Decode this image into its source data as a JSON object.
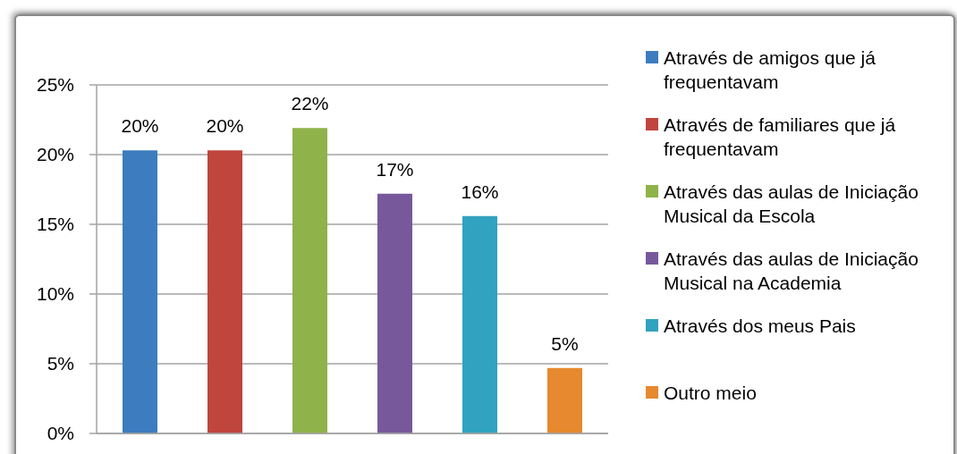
{
  "chart_data": {
    "type": "bar",
    "categories": [
      null
    ],
    "series": [
      {
        "name": "Através de amigos que já frequentavam",
        "color": "#3d7cbf",
        "values": [
          20.3
        ],
        "value_labels": [
          "20%"
        ]
      },
      {
        "name": "Através de familiares que já frequentavam",
        "color": "#bf453d",
        "values": [
          20.3
        ],
        "value_labels": [
          "20%"
        ]
      },
      {
        "name": "Através das aulas de Iniciação Musical da Escola",
        "color": "#8fb24a",
        "values": [
          21.9
        ],
        "value_labels": [
          "22%"
        ]
      },
      {
        "name": "Através das aulas de Iniciação Musical na Academia",
        "color": "#77599b",
        "values": [
          17.2
        ],
        "value_labels": [
          "17%"
        ]
      },
      {
        "name": "Através dos meus Pais",
        "color": "#31a2bf",
        "values": [
          15.6
        ],
        "value_labels": [
          "16%"
        ]
      },
      {
        "name": "Outro meio",
        "color": "#e6892f",
        "values": [
          4.7
        ],
        "value_labels": [
          "5%"
        ]
      }
    ],
    "ylim": [
      0,
      25
    ],
    "yticks": [
      {
        "value": 0,
        "label": "0%"
      },
      {
        "value": 5,
        "label": "5%"
      },
      {
        "value": 10,
        "label": "10%"
      },
      {
        "value": 15,
        "label": "15%"
      },
      {
        "value": 20,
        "label": "20%"
      },
      {
        "value": 25,
        "label": "25%"
      }
    ],
    "grid": "y",
    "legend": "right",
    "tick_labels": "y"
  }
}
